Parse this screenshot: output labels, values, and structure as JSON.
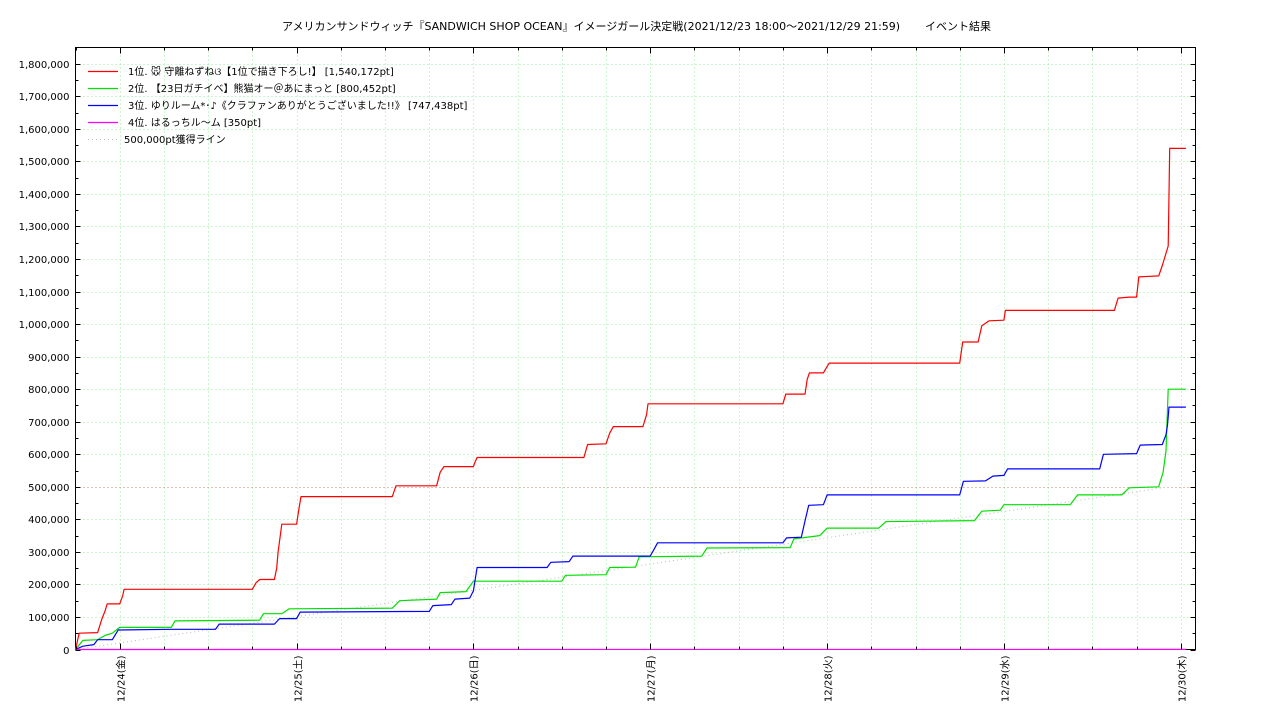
{
  "chart_data": {
    "type": "line",
    "title": "アメリカンサンドウィッチ『SANDWICH SHOP OCEAN』イメージガール決定戦(2021/12/23 18:00～2021/12/29 21:59)",
    "subtitle": "イベント結果",
    "xlabel": "",
    "ylabel": "",
    "x_unit": "hours since 2021/12/23 18:00",
    "xlim": [
      0,
      152
    ],
    "ylim": [
      0,
      1850000
    ],
    "y_ticks": [
      0,
      100000,
      200000,
      300000,
      400000,
      500000,
      600000,
      700000,
      800000,
      900000,
      1000000,
      1100000,
      1200000,
      1300000,
      1400000,
      1500000,
      1600000,
      1700000,
      1800000
    ],
    "y_tick_labels": [
      "0",
      "100,000",
      "200,000",
      "300,000",
      "400,000",
      "500,000",
      "600,000",
      "700,000",
      "800,000",
      "900,000",
      "1,000,000",
      "1,100,000",
      "1,200,000",
      "1,300,000",
      "1,400,000",
      "1,500,000",
      "1,600,000",
      "1,700,000",
      "1,800,000"
    ],
    "x_ticks": [
      6,
      30,
      54,
      78,
      102,
      126,
      150
    ],
    "x_tick_labels": [
      "12/24(金)",
      "12/25(土)",
      "12/26(日)",
      "12/27(月)",
      "12/28(火)",
      "12/29(水)",
      "12/30(木)"
    ],
    "grid": true,
    "legend_position": "top-left",
    "series": [
      {
        "name": "1位. 🐭 守離ねずねଓ【1位で描き下ろし!】 [1,540,172pt]",
        "color": "#ff0000",
        "points": [
          [
            0,
            0
          ],
          [
            0.5,
            50000
          ],
          [
            3,
            52000
          ],
          [
            3.6,
            95000
          ],
          [
            4,
            118000
          ],
          [
            4.3,
            140000
          ],
          [
            6,
            140000
          ],
          [
            6.4,
            165000
          ],
          [
            6.6,
            185000
          ],
          [
            24,
            185000
          ],
          [
            24.5,
            205000
          ],
          [
            25,
            215000
          ],
          [
            27,
            215000
          ],
          [
            27.3,
            250000
          ],
          [
            27.5,
            300000
          ],
          [
            28,
            385000
          ],
          [
            30,
            385000
          ],
          [
            30.3,
            430000
          ],
          [
            30.6,
            470000
          ],
          [
            43,
            470000
          ],
          [
            43.5,
            503000
          ],
          [
            49,
            503000
          ],
          [
            49.5,
            545000
          ],
          [
            50,
            562000
          ],
          [
            54,
            562000
          ],
          [
            54.2,
            575000
          ],
          [
            54.5,
            590000
          ],
          [
            69,
            590000
          ],
          [
            69.5,
            630000
          ],
          [
            72,
            632000
          ],
          [
            72.5,
            665000
          ],
          [
            73,
            685000
          ],
          [
            77,
            685000
          ],
          [
            77.5,
            722000
          ],
          [
            77.7,
            755000
          ],
          [
            96,
            755000
          ],
          [
            96.4,
            785000
          ],
          [
            99,
            785000
          ],
          [
            99.3,
            830000
          ],
          [
            99.6,
            850000
          ],
          [
            101.5,
            850000
          ],
          [
            102,
            870000
          ],
          [
            102.3,
            880000
          ],
          [
            120,
            880000
          ],
          [
            120.4,
            945000
          ],
          [
            122.5,
            945000
          ],
          [
            123,
            995000
          ],
          [
            124,
            1010000
          ],
          [
            126,
            1012000
          ],
          [
            126.2,
            1042000
          ],
          [
            141,
            1042000
          ],
          [
            141.5,
            1080000
          ],
          [
            143,
            1083000
          ],
          [
            144,
            1083000
          ],
          [
            144.3,
            1145000
          ],
          [
            147,
            1148000
          ],
          [
            147.5,
            1180000
          ],
          [
            148.3,
            1240000
          ],
          [
            148.5,
            1540000
          ],
          [
            150.7,
            1540000
          ]
        ]
      },
      {
        "name": "2位. 【23日ガチイベ】熊猫オー＠あにまっと [800,452pt]",
        "color": "#00e000",
        "points": [
          [
            0,
            0
          ],
          [
            1,
            28000
          ],
          [
            3,
            30000
          ],
          [
            4,
            43000
          ],
          [
            5,
            50000
          ],
          [
            6,
            68000
          ],
          [
            13,
            68000
          ],
          [
            13.5,
            88000
          ],
          [
            25,
            90000
          ],
          [
            25.5,
            110000
          ],
          [
            28,
            110000
          ],
          [
            29,
            125000
          ],
          [
            43,
            127000
          ],
          [
            44,
            150000
          ],
          [
            49,
            155000
          ],
          [
            49.5,
            175000
          ],
          [
            53,
            178000
          ],
          [
            54,
            210000
          ],
          [
            66,
            210000
          ],
          [
            66.5,
            228000
          ],
          [
            72,
            230000
          ],
          [
            72.5,
            252000
          ],
          [
            76,
            253000
          ],
          [
            76.5,
            285000
          ],
          [
            85,
            287000
          ],
          [
            85.7,
            312000
          ],
          [
            97,
            313000
          ],
          [
            97.5,
            340000
          ],
          [
            101,
            350000
          ],
          [
            102,
            373000
          ],
          [
            109,
            373000
          ],
          [
            110,
            393000
          ],
          [
            122,
            396000
          ],
          [
            123,
            425000
          ],
          [
            125.5,
            428000
          ],
          [
            126,
            445000
          ],
          [
            135,
            445000
          ],
          [
            136,
            475000
          ],
          [
            142,
            475000
          ],
          [
            143,
            497000
          ],
          [
            147,
            500000
          ],
          [
            147.6,
            545000
          ],
          [
            148,
            610000
          ],
          [
            148.3,
            800000
          ],
          [
            150.7,
            800000
          ]
        ]
      },
      {
        "name": "3位. ゆりルーム*･♪《クラファンありがとうございました!!》 [747,438pt]",
        "color": "#0000ff",
        "points": [
          [
            0,
            0
          ],
          [
            1,
            10000
          ],
          [
            2.5,
            15000
          ],
          [
            3,
            30000
          ],
          [
            5,
            30000
          ],
          [
            5.8,
            60000
          ],
          [
            13,
            62000
          ],
          [
            19,
            62000
          ],
          [
            19.5,
            78000
          ],
          [
            27,
            78000
          ],
          [
            27.7,
            95000
          ],
          [
            30,
            95000
          ],
          [
            30.5,
            115000
          ],
          [
            48,
            117000
          ],
          [
            48.5,
            135000
          ],
          [
            51,
            138000
          ],
          [
            51.5,
            155000
          ],
          [
            53.5,
            158000
          ],
          [
            54,
            180000
          ],
          [
            54.5,
            252000
          ],
          [
            64,
            252000
          ],
          [
            64.5,
            268000
          ],
          [
            67,
            270000
          ],
          [
            67.5,
            287000
          ],
          [
            78,
            287000
          ],
          [
            78.5,
            307000
          ],
          [
            79,
            328000
          ],
          [
            96,
            328000
          ],
          [
            96.5,
            343000
          ],
          [
            98.5,
            345000
          ],
          [
            99,
            395000
          ],
          [
            99.5,
            443000
          ],
          [
            101.5,
            445000
          ],
          [
            102,
            475000
          ],
          [
            120,
            475000
          ],
          [
            120.5,
            517000
          ],
          [
            123.5,
            518000
          ],
          [
            124.5,
            533000
          ],
          [
            126,
            535000
          ],
          [
            126.5,
            555000
          ],
          [
            139,
            555000
          ],
          [
            139.5,
            600000
          ],
          [
            144,
            602000
          ],
          [
            144.5,
            628000
          ],
          [
            147.5,
            630000
          ],
          [
            148,
            660000
          ],
          [
            148.2,
            690000
          ],
          [
            148.4,
            745000
          ],
          [
            150.7,
            745000
          ]
        ]
      },
      {
        "name": "4位. はるっちル～ム [350pt]",
        "color": "#ff00ff",
        "points": [
          [
            0,
            0
          ],
          [
            150.7,
            350
          ]
        ]
      }
    ],
    "reference_lines": [
      {
        "name": "500,000pt獲得ライン",
        "color": "#bb8866",
        "horizontal_value": 500000,
        "diagonal_points": [
          [
            0,
            0
          ],
          [
            148.5,
            500000
          ]
        ]
      }
    ]
  }
}
